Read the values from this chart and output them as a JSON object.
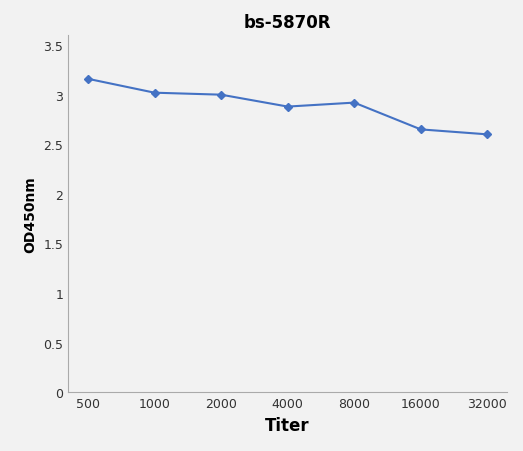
{
  "title": "bs-5870R",
  "xlabel": "Titer",
  "ylabel": "OD450nm",
  "x_values": [
    0,
    1,
    2,
    3,
    4,
    5,
    6
  ],
  "y_values": [
    3.16,
    3.02,
    3.0,
    2.88,
    2.92,
    2.65,
    2.6
  ],
  "x_tick_labels": [
    "500",
    "1000",
    "2000",
    "4000",
    "8000",
    "16000",
    "32000"
  ],
  "ylim": [
    0,
    3.6
  ],
  "yticks": [
    0,
    0.5,
    1,
    1.5,
    2,
    2.5,
    3,
    3.5
  ],
  "ytick_labels": [
    "0",
    "0.5",
    "1",
    "1.5",
    "2",
    "2.5",
    "3",
    "3.5"
  ],
  "line_color": "#4472C4",
  "marker": "D",
  "marker_size": 4,
  "line_width": 1.5,
  "background_color": "#f2f2f2",
  "title_fontsize": 12,
  "title_fontweight": "bold",
  "xlabel_fontsize": 12,
  "xlabel_fontweight": "bold",
  "ylabel_fontsize": 10,
  "ylabel_fontweight": "bold",
  "tick_fontsize": 9,
  "spine_color": "#aaaaaa"
}
